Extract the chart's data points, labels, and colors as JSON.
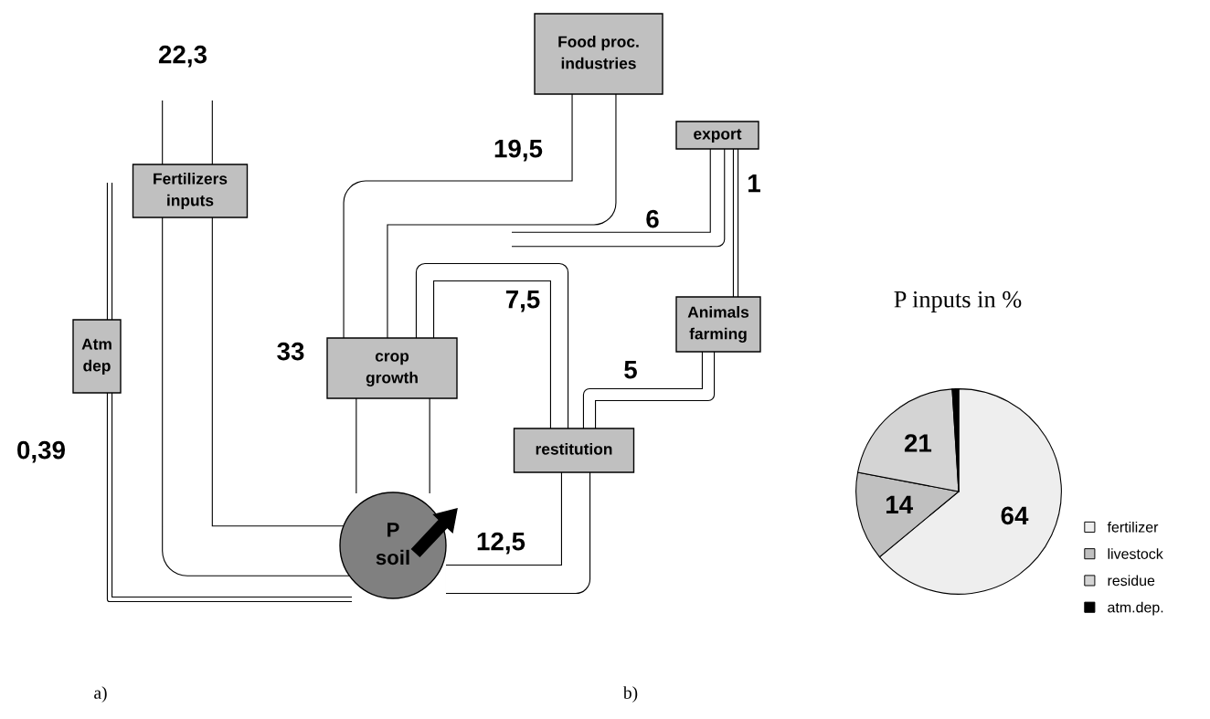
{
  "chart_data": [
    {
      "type": "other",
      "annotations": [
        "Fertilizers\ninputs",
        "Atm\ndep",
        "crop\ngrowth",
        "Food proc.\nindustries",
        "export",
        "Animals\nfarming",
        "restitution",
        "P\nsoil",
        "22,3",
        "0,39",
        "33",
        "19,5",
        "6",
        "1",
        "7,5",
        "5",
        "12,5",
        "a)"
      ]
    },
    {
      "type": "pie",
      "title": "P inputs in %",
      "categories": [
        "fertilizer",
        "livestock",
        "residue",
        "atm.dep."
      ],
      "values": [
        64,
        14,
        21,
        1
      ],
      "value_labels": [
        "64",
        "14",
        "21",
        null
      ],
      "colors": [
        "#eeeeee",
        "#c0c0c0",
        "#d4d4d4",
        "#000000"
      ],
      "legend": "bottom right",
      "annotations": [
        "b)"
      ]
    }
  ]
}
